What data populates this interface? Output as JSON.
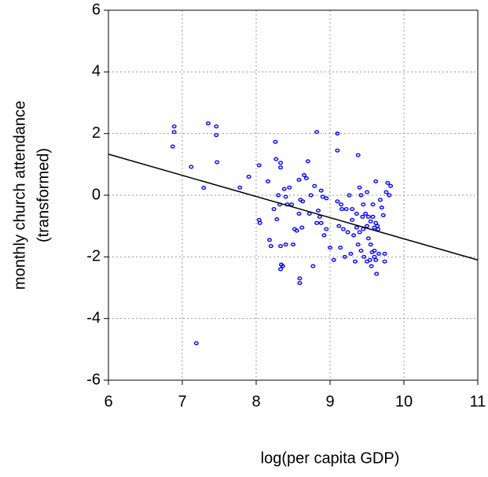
{
  "chart_data": {
    "type": "scatter",
    "xlabel": "log(per capita GDP)",
    "ylabel": [
      "monthly church attendance",
      "(transformed)"
    ],
    "xlim": [
      6,
      11
    ],
    "ylim": [
      -6,
      6
    ],
    "xticks": [
      6,
      7,
      8,
      9,
      10,
      11
    ],
    "yticks": [
      -6,
      -4,
      -2,
      0,
      2,
      4,
      6
    ],
    "grid": true,
    "color": "#0000ff",
    "line_color": "#000000",
    "x": [
      6.87,
      6.89,
      6.89,
      7.35,
      7.46,
      7.46,
      7.47,
      7.12,
      7.29,
      7.78,
      7.9,
      7.19,
      8.04,
      8.04,
      8.05,
      8.16,
      8.18,
      8.2,
      8.24,
      8.26,
      8.27,
      8.28,
      8.3,
      8.32,
      8.33,
      8.33,
      8.33,
      8.34,
      8.33,
      8.36,
      8.38,
      8.4,
      8.4,
      8.42,
      8.45,
      8.48,
      8.5,
      8.52,
      8.55,
      8.58,
      8.58,
      8.59,
      8.59,
      8.6,
      8.62,
      8.63,
      8.65,
      8.68,
      8.7,
      8.72,
      8.74,
      8.77,
      8.79,
      8.82,
      8.82,
      8.84,
      8.86,
      8.88,
      8.88,
      8.9,
      8.92,
      8.95,
      8.95,
      9.0,
      9.05,
      9.1,
      9.1,
      9.1,
      9.12,
      9.14,
      9.15,
      9.16,
      9.18,
      9.2,
      9.22,
      9.24,
      9.26,
      9.28,
      9.3,
      9.3,
      9.32,
      9.34,
      9.36,
      9.36,
      9.38,
      9.38,
      9.4,
      9.4,
      9.42,
      9.42,
      9.44,
      9.45,
      9.45,
      9.46,
      9.48,
      9.5,
      9.5,
      9.5,
      9.52,
      9.52,
      9.54,
      9.55,
      9.55,
      9.56,
      9.57,
      9.58,
      9.58,
      9.6,
      9.6,
      9.62,
      9.62,
      9.62,
      9.63,
      9.64,
      9.65,
      9.68,
      9.7,
      9.72,
      9.74,
      9.74,
      9.76,
      9.78,
      9.8,
      9.82,
      9.6,
      9.66
    ],
    "values": [
      1.58,
      2.05,
      2.23,
      2.33,
      2.23,
      1.95,
      1.07,
      0.92,
      0.24,
      0.25,
      0.6,
      -4.8,
      0.97,
      -0.8,
      -0.9,
      0.45,
      -1.45,
      -1.65,
      -0.45,
      1.73,
      1.17,
      -0.78,
      0.0,
      -0.3,
      -1.65,
      1.05,
      0.9,
      -2.25,
      -2.4,
      -2.3,
      0.2,
      -0.05,
      -1.6,
      -0.3,
      0.25,
      -0.3,
      -1.6,
      -1.1,
      -1.15,
      0.5,
      -0.6,
      -2.7,
      -2.85,
      -0.15,
      -1.05,
      -0.2,
      0.65,
      0.55,
      1.1,
      -0.6,
      0.0,
      -2.3,
      0.3,
      2.05,
      -0.9,
      -0.5,
      -0.7,
      -0.9,
      0.15,
      -0.05,
      -1.3,
      -0.1,
      -1.1,
      -1.7,
      -2.1,
      2.0,
      1.45,
      -0.2,
      -1.0,
      -1.7,
      -0.3,
      -0.45,
      -1.1,
      -2.0,
      -0.45,
      -1.2,
      0.0,
      -1.9,
      -0.8,
      -0.45,
      -1.3,
      -2.15,
      -0.6,
      -1.05,
      1.3,
      -1.6,
      -1.2,
      0.25,
      0.0,
      -1.8,
      -0.7,
      -0.3,
      -1.1,
      -2.0,
      -0.6,
      0.1,
      -1.0,
      -2.15,
      -0.7,
      -1.4,
      -2.1,
      -0.85,
      -1.6,
      -2.3,
      -1.85,
      -0.7,
      -0.3,
      -2.0,
      -1.05,
      0.45,
      -0.9,
      -2.1,
      -2.55,
      -1.0,
      -1.1,
      -0.15,
      -0.4,
      -0.65,
      -1.9,
      -2.15,
      0.1,
      0.4,
      0.0,
      0.3,
      -1.8,
      -1.9
    ],
    "fit_line": {
      "x": [
        6,
        11
      ],
      "y": [
        1.33,
        -2.1
      ]
    }
  }
}
